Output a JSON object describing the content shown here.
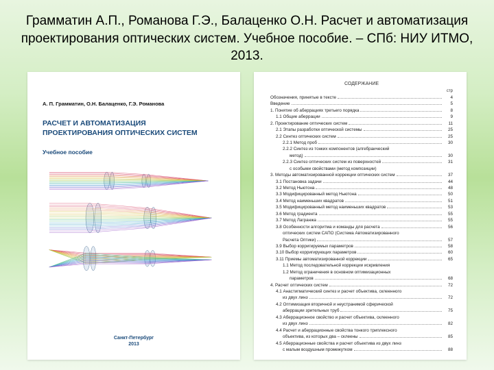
{
  "slide_title": "Грамматин А.П., Романова Г.Э., Балаценко О.Н. Расчет и автоматизация проектирования оптических систем. Учебное пособие. – СПб: НИУ ИТМО, 2013.",
  "cover": {
    "authors": "А. П. Грамматин, О.Н. Балаценко, Г.Э. Романова",
    "title_line1": "РАСЧЕТ И АВТОМАТИЗАЦИЯ",
    "title_line2": "ПРОЕКТИРОВАНИЯ ОПТИЧЕСКИХ СИСТЕМ",
    "subtitle": "Учебное пособие",
    "city": "Санкт-Петербург",
    "year": "2013"
  },
  "diagram": {
    "hues": [
      "#d94a6a",
      "#e07a3a",
      "#d8b93a",
      "#9abf3a",
      "#4ab98a",
      "#3a9fc8",
      "#5a6ad0",
      "#9a5ac8"
    ]
  },
  "toc": {
    "header": "СОДЕРЖАНИЕ",
    "page_col": "стр",
    "items": [
      {
        "t": "Обозначения, принятые в тексте",
        "p": "4",
        "i": 0
      },
      {
        "t": "Введение",
        "p": "5",
        "i": 0
      },
      {
        "t": "1. Понятие об аберрациях третьего порядка",
        "p": "8",
        "i": 0
      },
      {
        "t": "1.1 Общие аберрации",
        "p": "9",
        "i": 1
      },
      {
        "t": "2. Проектирование оптических систем",
        "p": "11",
        "i": 0
      },
      {
        "t": "2.1 Этапы разработки оптической системы",
        "p": "25",
        "i": 1
      },
      {
        "t": "2.2 Синтез оптических систем",
        "p": "25",
        "i": 1
      },
      {
        "t": "2.2.1 Метод проб",
        "p": "30",
        "i": 2
      },
      {
        "t": "2.2.2 Синтез из тонких компонентов (алгебраический",
        "p": "",
        "i": 2,
        "cont": "метод)",
        "cp": "30"
      },
      {
        "t": "2.2.3 Синтез оптических систем из поверхностей",
        "p": "31",
        "i": 2
      },
      {
        "t": "с особыми свойствами (метод композиции)",
        "p": "",
        "i": 3,
        "nodots": true
      },
      {
        "t": "3. Методы автоматизированной коррекции оптических систем",
        "p": "37",
        "i": 0
      },
      {
        "t": "3.1 Постановка задачи",
        "p": "44",
        "i": 1
      },
      {
        "t": "3.2 Метод Ньютона",
        "p": "48",
        "i": 1
      },
      {
        "t": "3.3 Модифицированный метод Ньютона",
        "p": "50",
        "i": 1
      },
      {
        "t": "3.4 Метод наименьших квадратов",
        "p": "51",
        "i": 1
      },
      {
        "t": "3.5 Модифицированный метод наименьших квадратов",
        "p": "53",
        "i": 1
      },
      {
        "t": "3.6 Метод градиента",
        "p": "55",
        "i": 1
      },
      {
        "t": "3.7 Метод Лагранжа",
        "p": "55",
        "i": 1
      },
      {
        "t": "3.8 Особенности алгоритма и команды для расчета",
        "p": "56",
        "i": 1
      },
      {
        "t": "оптических систем САПО (Система Автоматизированного",
        "p": "",
        "i": 2,
        "nodots": true
      },
      {
        "t": "Расчета Оптики)",
        "p": "57",
        "i": 2
      },
      {
        "t": "3.9 Выбор корригируемых параметров",
        "p": "58",
        "i": 1
      },
      {
        "t": "3.10 Выбор корригирующих параметров",
        "p": "60",
        "i": 1
      },
      {
        "t": "3.11 Приемы автоматизированной коррекции",
        "p": "65",
        "i": 1
      },
      {
        "t": "1.1 Метод последовательной коррекции искривления",
        "p": "",
        "i": 2,
        "nodots": true
      },
      {
        "t": "1.2 Метод ограничения в основном оптимизационных",
        "p": "",
        "i": 2,
        "nodots": true
      },
      {
        "t": "параметров",
        "p": "68",
        "i": 3
      },
      {
        "t": "4. Расчет оптических систем",
        "p": "72",
        "i": 0
      },
      {
        "t": "4.1 Анастигматический синтез и расчет объектива, склеенного",
        "p": "",
        "i": 1,
        "cont": "из двух линз",
        "cp": "72"
      },
      {
        "t": "4.2 Оптимизация вторичной и неустранимой сферической",
        "p": "",
        "i": 1,
        "cont": "аберрации зрительных труб",
        "cp": "75"
      },
      {
        "t": "4.3 Аберрационное свойство и расчет объектива, склеенного",
        "p": "",
        "i": 1,
        "cont": "из двух линз",
        "cp": "82"
      },
      {
        "t": "4.4 Расчет и аберрационные свойства тонкого триплексного",
        "p": "",
        "i": 1,
        "cont": "объектива, из которых два – склеены",
        "cp": "85"
      },
      {
        "t": "4.5 Аберрационные свойства и расчет объектива из двух линз",
        "p": "",
        "i": 1,
        "cont": "с малым воздушным промежутком",
        "cp": "88"
      }
    ]
  }
}
